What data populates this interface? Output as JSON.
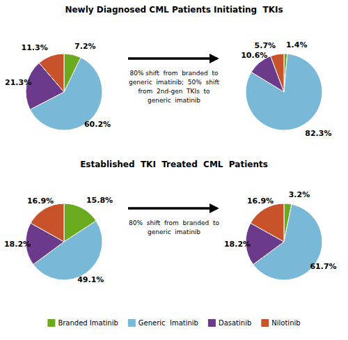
{
  "chart_data": [
    {
      "type": "pie",
      "title": "Newly Diagnosed CML Patients Initiating  TKIs",
      "categories": [
        "Branded Imatinib",
        "Generic  Imatinib",
        "Dasatinib",
        "Nilotinib"
      ],
      "values": [
        7.2,
        60.2,
        21.3,
        11.3
      ],
      "value_labels": [
        "7.2%",
        "60.2%",
        "21.3%",
        "11.3%"
      ],
      "colors": [
        "#6aaa1f",
        "#7ab8d8",
        "#6b3a8a",
        "#c8522a"
      ],
      "data_labels": true,
      "legend": "bottom"
    },
    {
      "type": "pie",
      "values": [
        1.4,
        82.3,
        10.6,
        5.7
      ],
      "value_labels": [
        "1.4%",
        "82.3%",
        "10.6%",
        "5.7%"
      ],
      "colors": [
        "#6aaa1f",
        "#7ab8d8",
        "#6b3a8a",
        "#c8522a"
      ],
      "data_labels": true,
      "annotations": [
        "80% shift  from  branded  to",
        "generic  imatinib;  50%  shift",
        "from  2nd-gen  TKIs  to",
        "generic  imatinib"
      ]
    },
    {
      "type": "pie",
      "title": "Established  TKI  Treated  CML  Patients",
      "values": [
        15.8,
        49.1,
        18.2,
        16.9
      ],
      "value_labels": [
        "15.8%",
        "49.1%",
        "18.2%",
        "16.9%"
      ],
      "colors": [
        "#6aaa1f",
        "#7ab8d8",
        "#6b3a8a",
        "#c8522a"
      ],
      "data_labels": true
    },
    {
      "type": "pie",
      "values": [
        3.2,
        61.7,
        18.2,
        16.9
      ],
      "value_labels": [
        "3.2%",
        "61.7%",
        "18.2%",
        "16.9%"
      ],
      "colors": [
        "#6aaa1f",
        "#7ab8d8",
        "#6b3a8a",
        "#c8522a"
      ],
      "data_labels": true,
      "annotations": [
        "80%  shift  from  branded  to",
        "generic  imatinib"
      ]
    }
  ]
}
